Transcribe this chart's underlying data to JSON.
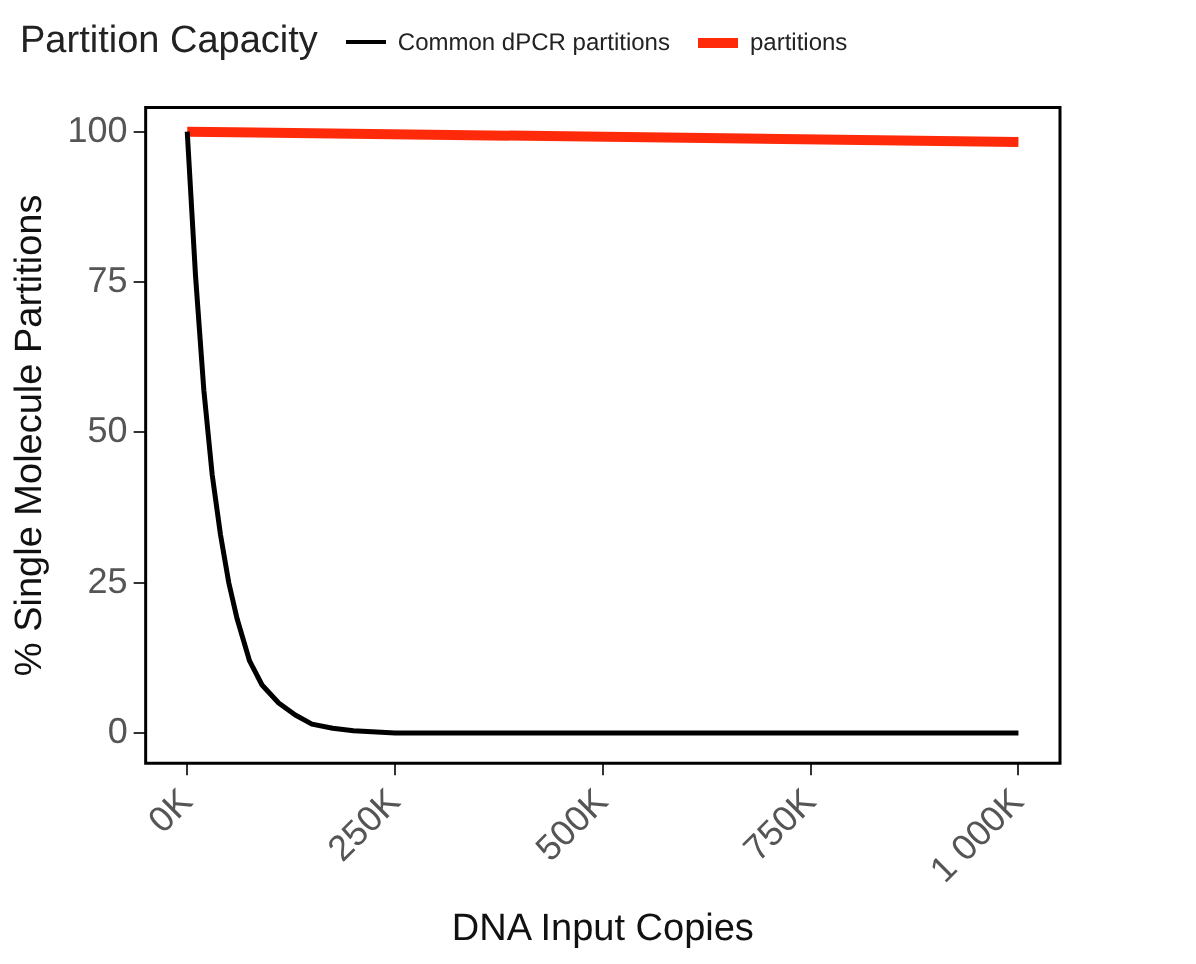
{
  "chart_data": {
    "type": "line",
    "legend_title": "Partition Capacity",
    "xlabel": "DNA Input Copies",
    "ylabel": "% Single Molecule Partitions",
    "xlim": [
      -50000,
      1050000
    ],
    "xticks": [
      {
        "value": 0,
        "label": "0K"
      },
      {
        "value": 250000,
        "label": "250K"
      },
      {
        "value": 500000,
        "label": "500K"
      },
      {
        "value": 750000,
        "label": "750K"
      },
      {
        "value": 1000000,
        "label": "1 000K"
      }
    ],
    "ylim": [
      -5,
      104
    ],
    "yticks": [
      0,
      25,
      50,
      75,
      100
    ],
    "grid": false,
    "legend": "top",
    "marker": "none",
    "line_style": "solid",
    "series": [
      {
        "name": "Common dPCR partitions",
        "color": "#000000",
        "x": [
          0,
          10000,
          20000,
          30000,
          40000,
          50000,
          60000,
          75000,
          90000,
          110000,
          130000,
          150000,
          175000,
          200000,
          250000,
          1000000
        ],
        "values": [
          100,
          76,
          57,
          43,
          33,
          25,
          19,
          12,
          8,
          5,
          3,
          1.5,
          0.8,
          0.4,
          0,
          0
        ]
      },
      {
        "name": "partitions",
        "color": "#ff2a0a",
        "x": [
          0,
          1000000
        ],
        "values": [
          100,
          98.3
        ]
      }
    ]
  }
}
